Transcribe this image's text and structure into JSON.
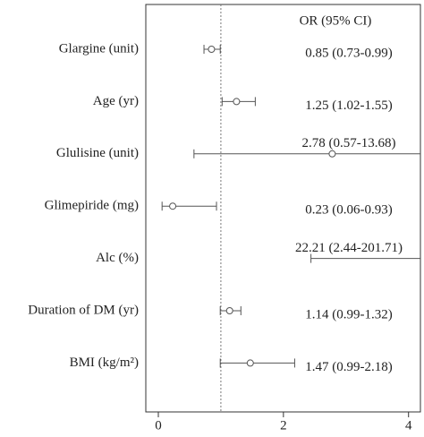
{
  "chart_data": {
    "type": "forest",
    "header": "OR (95% CI)",
    "categories": [
      "Glargine (unit)",
      "Age (yr)",
      "Glulisine (unit)",
      "Glimepiride (mg)",
      "Alc (%)",
      "Duration of DM (yr)",
      "BMI (kg/m²)"
    ],
    "values": [
      0.85,
      1.25,
      2.78,
      0.23,
      22.21,
      1.14,
      1.47
    ],
    "lower": [
      0.73,
      1.02,
      0.57,
      0.06,
      2.44,
      0.99,
      0.99
    ],
    "upper": [
      0.99,
      1.55,
      13.68,
      0.93,
      201.71,
      1.32,
      2.18
    ],
    "value_labels": [
      "0.85 (0.73-0.99)",
      "1.25 (1.02-1.55)",
      "2.78 (0.57-13.68)",
      "0.23 (0.06-0.93)",
      "22.21 (2.44-201.71)",
      "1.14 (0.99-1.32)",
      "1.47 (0.99-2.18)"
    ],
    "reference_line": 1,
    "color": "#555555",
    "xlim": [
      -0.2,
      4.19
    ],
    "xticks": [
      0,
      2,
      4
    ]
  }
}
